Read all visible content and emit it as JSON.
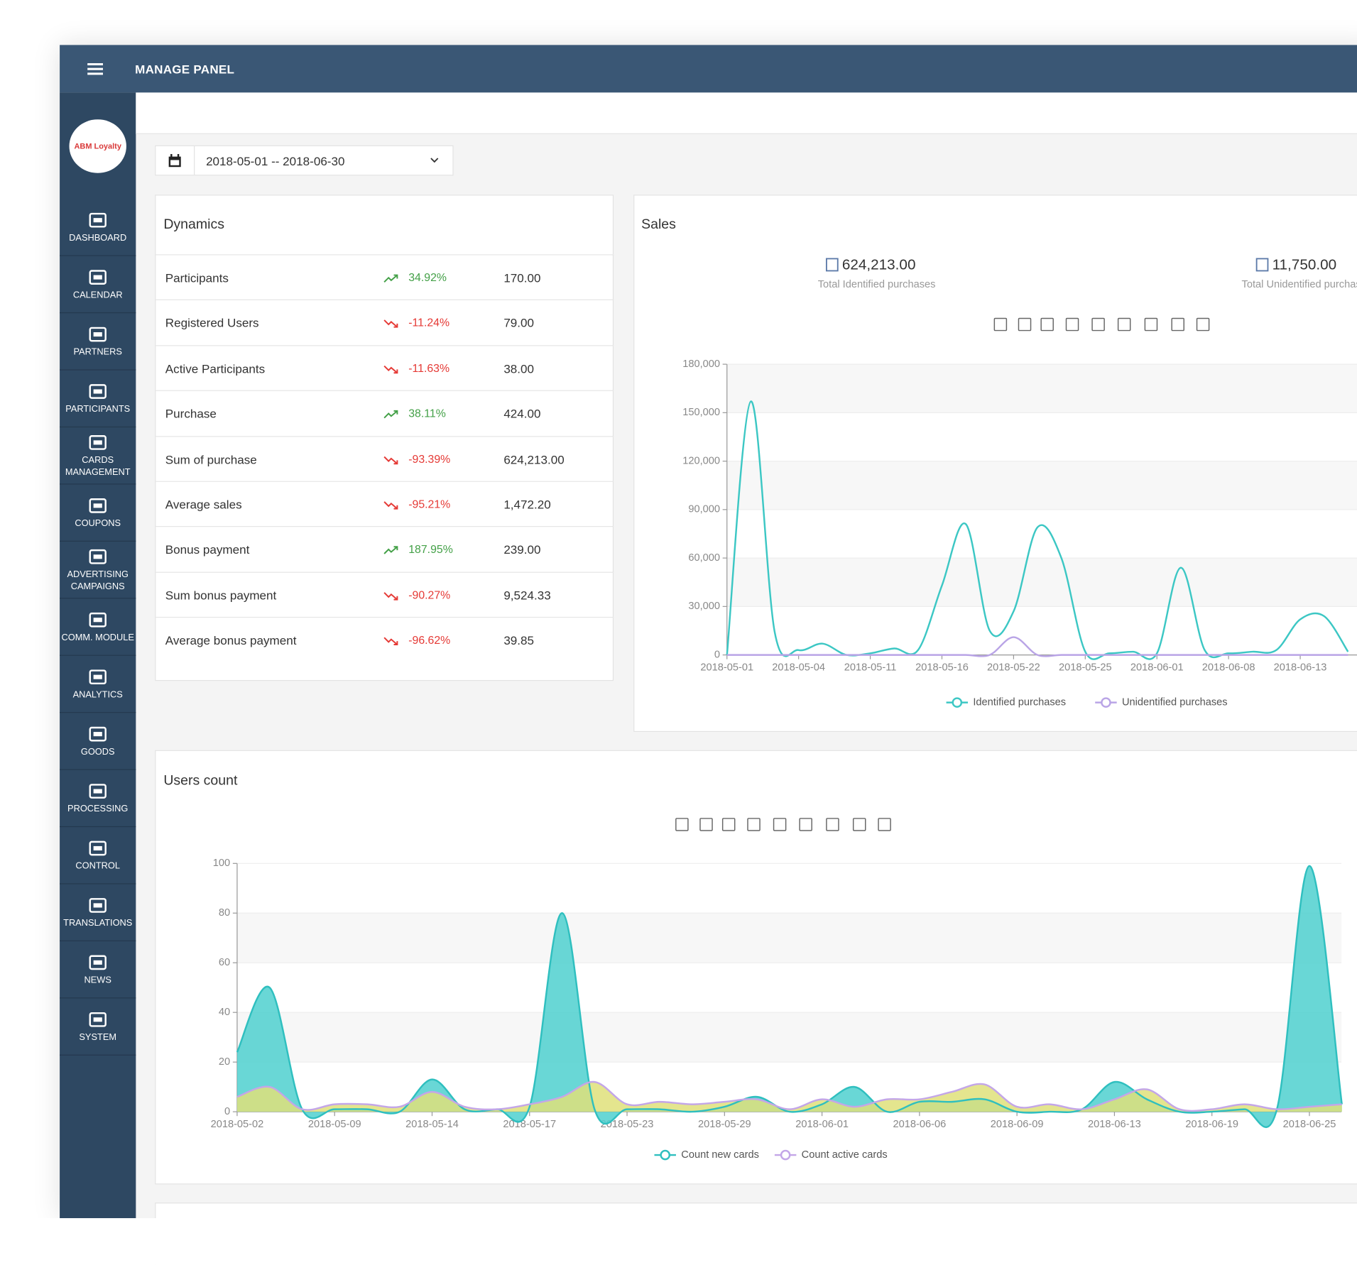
{
  "header": {
    "title": "MANAGE PANEL"
  },
  "sidebar": {
    "logo": "ABM Loyalty",
    "items": [
      {
        "lines": [
          "DASHBOARD"
        ]
      },
      {
        "lines": [
          "CALENDAR"
        ]
      },
      {
        "lines": [
          "PARTNERS"
        ]
      },
      {
        "lines": [
          "PARTICIPANTS"
        ]
      },
      {
        "lines": [
          "CARDS",
          "MANAGEMENT"
        ]
      },
      {
        "lines": [
          "COUPONS"
        ]
      },
      {
        "lines": [
          "ADVERTISING",
          "CAMPAIGNS"
        ]
      },
      {
        "lines": [
          "COMM. MODULE"
        ]
      },
      {
        "lines": [
          "ANALYTICS"
        ]
      },
      {
        "lines": [
          "GOODS"
        ]
      },
      {
        "lines": [
          "PROCESSING"
        ]
      },
      {
        "lines": [
          "CONTROL"
        ]
      },
      {
        "lines": [
          "TRANSLATIONS"
        ]
      },
      {
        "lines": [
          "NEWS"
        ]
      },
      {
        "lines": [
          "SYSTEM"
        ]
      }
    ]
  },
  "date_range": "2018-05-01 -- 2018-06-30",
  "dynamics": {
    "title": "Dynamics",
    "rows": [
      [
        "Participants",
        "34.92%",
        "170.00"
      ],
      [
        "Registered Users",
        "-11.24%",
        "79.00"
      ],
      [
        "Active Participants",
        "-11.63%",
        "38.00"
      ],
      [
        "Purchase",
        "38.11%",
        "424.00"
      ],
      [
        "Sum of purchase",
        "-93.39%",
        "624,213.00"
      ],
      [
        "Average sales",
        "-95.21%",
        "1,472.20"
      ],
      [
        "Bonus payment",
        "187.95%",
        "239.00"
      ],
      [
        "Sum bonus payment",
        "-90.27%",
        "9,524.33"
      ],
      [
        "Average bonus payment",
        "-96.62%",
        "39.85"
      ]
    ]
  },
  "sales_summary": {
    "stats": [
      {
        "value": "624,213.00",
        "label": "Total Identified purchases"
      },
      {
        "value": "11,750.00",
        "label": "Total Unidentified purchases"
      }
    ]
  },
  "chart_data": [
    {
      "type": "line",
      "title": "Sales",
      "categories": [
        "2018-05-01",
        null,
        null,
        "2018-05-04",
        null,
        null,
        "2018-05-11",
        null,
        null,
        "2018-05-16",
        null,
        null,
        "2018-05-22",
        null,
        null,
        "2018-05-25",
        null,
        null,
        "2018-06-01",
        null,
        null,
        "2018-06-08",
        null,
        null,
        "2018-06-13",
        null,
        null
      ],
      "series": [
        {
          "name": "Identified purchases",
          "color": "#3cc7c4",
          "values": [
            0,
            157000,
            14000,
            3000,
            7000,
            0,
            1000,
            4000,
            3000,
            43000,
            81000,
            15000,
            27000,
            79000,
            60000,
            2000,
            1000,
            2000,
            1000,
            54000,
            3000,
            1000,
            2000,
            3000,
            22000,
            24000,
            2000
          ]
        },
        {
          "name": "Unidentified purchases",
          "color": "#b9a4e6",
          "values": [
            0,
            0,
            0,
            0,
            0,
            0,
            0,
            0,
            0,
            0,
            0,
            0,
            11000,
            0,
            0,
            0,
            0,
            0,
            0,
            0,
            0,
            0,
            0,
            0,
            0,
            0,
            0
          ]
        }
      ],
      "ylim": [
        0,
        180000
      ],
      "yticks": [
        0,
        {
          "value": 30000,
          "label": "30,000"
        },
        {
          "value": 60000,
          "label": "60,000"
        },
        {
          "value": 90000,
          "label": "90,000"
        },
        {
          "value": 120000,
          "label": "120,000"
        },
        {
          "value": 150000,
          "label": "150,000"
        },
        {
          "value": 180000,
          "label": "180,000"
        }
      ],
      "grid": true
    },
    {
      "type": "area",
      "title": "Users count",
      "categories": [
        "2018-05-02",
        null,
        null,
        "2018-05-09",
        null,
        null,
        "2018-05-14",
        null,
        null,
        "2018-05-17",
        null,
        null,
        "2018-05-23",
        null,
        null,
        "2018-05-29",
        null,
        null,
        "2018-06-01",
        null,
        null,
        "2018-06-06",
        null,
        null,
        "2018-06-09",
        null,
        null,
        "2018-06-13",
        null,
        null,
        "2018-06-19",
        null,
        null,
        "2018-06-25",
        null
      ],
      "series": [
        {
          "name": "Count new cards",
          "color": "#2fbfbf",
          "area_color": "#4fd0cf",
          "values": [
            24,
            50,
            1,
            1,
            1,
            0,
            13,
            1,
            1,
            2,
            80,
            1,
            1,
            1,
            0,
            2,
            6,
            0,
            3,
            10,
            0,
            4,
            4,
            5,
            0,
            0,
            1,
            12,
            5,
            0,
            0,
            1,
            1,
            99,
            3
          ]
        },
        {
          "name": "Count active cards",
          "color": "#c3a6e8",
          "area_color": "#dfe17a",
          "values": [
            6,
            10,
            1,
            3,
            3,
            2,
            8,
            2,
            1,
            3,
            6,
            12,
            3,
            4,
            3,
            4,
            5,
            1,
            5,
            2,
            5,
            5,
            8,
            11,
            2,
            3,
            1,
            5,
            9,
            1,
            1,
            3,
            1,
            2,
            3
          ]
        }
      ],
      "ylim": [
        0,
        100
      ],
      "yticks": [
        0,
        20,
        40,
        60,
        80,
        100
      ],
      "grid": true
    }
  ]
}
